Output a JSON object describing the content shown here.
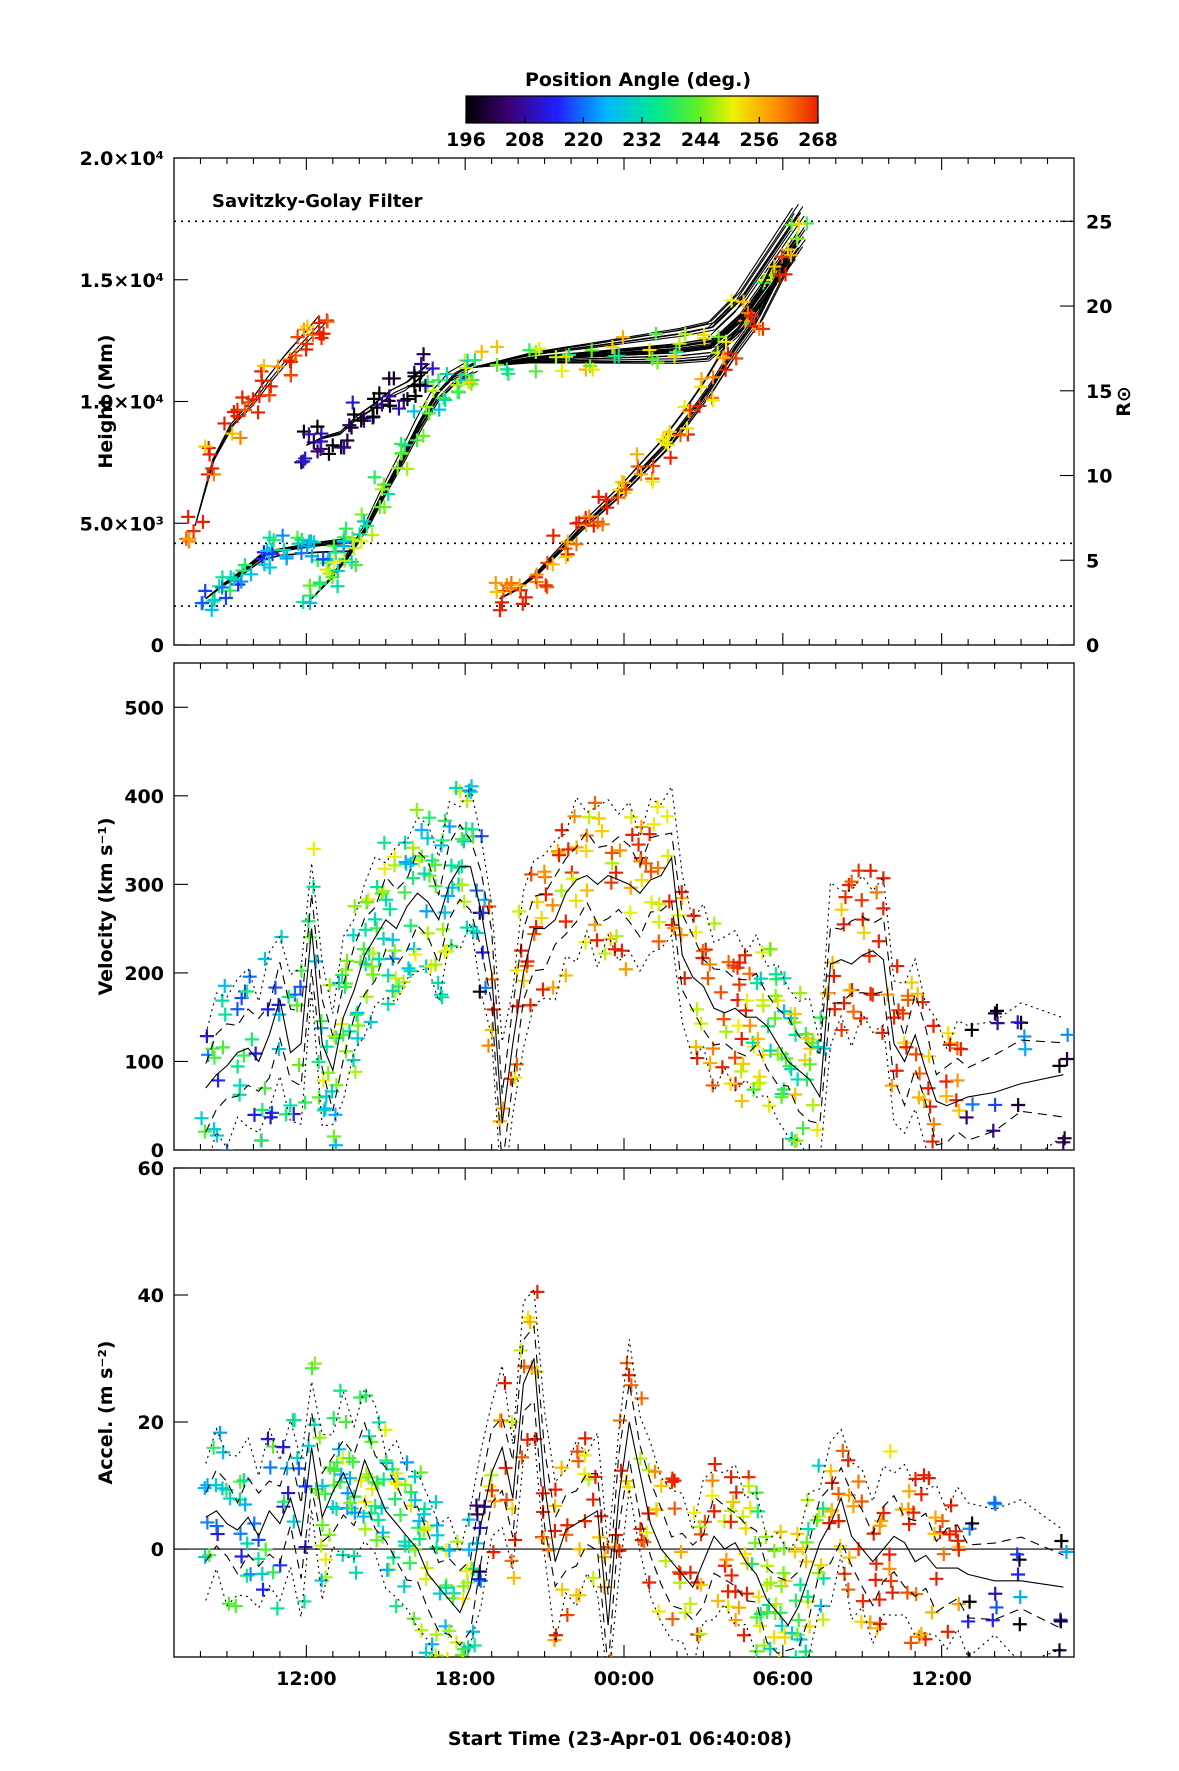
{
  "figure": {
    "colorbar": {
      "title": "Position Angle (deg.)",
      "ticks": [
        "196",
        "208",
        "220",
        "232",
        "244",
        "256",
        "268"
      ],
      "range": [
        196,
        268
      ]
    },
    "xlabel": "Start Time (23-Apr-01 06:40:08)",
    "xticks": [
      "12:00",
      "18:00",
      "00:00",
      "06:00",
      "12:00"
    ]
  },
  "colors": {
    "colormap": [
      "#000000",
      "#3a0070",
      "#2020ff",
      "#00b8ff",
      "#00e890",
      "#60f020",
      "#f0f000",
      "#ff9000",
      "#e82000"
    ]
  },
  "chart_data": [
    {
      "type": "scatter",
      "panel": "height",
      "ylabel": "Height (Mm)",
      "y2label": "R⊙",
      "annotation": "Savitzky-Golay Filter",
      "ylim": [
        0,
        20000
      ],
      "y_ticks": [
        "0",
        "5.0×10³",
        "1.0×10⁴",
        "1.5×10⁴",
        "2.0×10⁴"
      ],
      "y2_ticks": [
        "0",
        "5",
        "10",
        "15",
        "20",
        "25"
      ],
      "reference_lines_rsun": [
        2.3,
        6.0,
        25.0
      ],
      "groups": [
        {
          "x_hours": [
            8.2,
            8.9,
            9.6,
            10.3,
            10.9,
            11.6,
            12.3,
            12.9,
            13.6
          ],
          "y_mm": [
            1900,
            2500,
            3000,
            3600,
            3800,
            3900,
            4000,
            4050,
            4100
          ],
          "pa": 226
        },
        {
          "x_hours": [
            12.2,
            12.9,
            13.6,
            14.3,
            14.9,
            15.6,
            16.3,
            16.9,
            17.6,
            18.3
          ],
          "y_mm": [
            1900,
            2700,
            3700,
            4900,
            6200,
            7600,
            9100,
            10200,
            11000,
            11400
          ],
          "pa": 238
        },
        {
          "x_hours": [
            18.3,
            19.4,
            20.5,
            21.6,
            22.8,
            23.9,
            1.0,
            2.1,
            3.3,
            4.4,
            5.5,
            6.6
          ],
          "y_mm": [
            11400,
            11600,
            11800,
            11900,
            12000,
            12100,
            12200,
            12300,
            12500,
            13600,
            15300,
            17000
          ],
          "pa": 244
        },
        {
          "x_hours": [
            19.3,
            20.0,
            20.8,
            21.6,
            22.4,
            23.2,
            0.0,
            0.8,
            1.6,
            2.4,
            3.2,
            4.0,
            5.0,
            6.0
          ],
          "y_mm": [
            1900,
            2300,
            3000,
            3900,
            4800,
            5600,
            6400,
            7300,
            8200,
            9300,
            10500,
            11900,
            13400,
            15600
          ],
          "pa": 262
        },
        {
          "x_hours": [
            7.8,
            8.5,
            9.2,
            9.9,
            10.6,
            11.3,
            12.0,
            12.6
          ],
          "y_mm": [
            4900,
            7600,
            9000,
            9800,
            10800,
            11700,
            12500,
            13200
          ],
          "pa": 266
        },
        {
          "x_hours": [
            12.0,
            12.6,
            13.3,
            13.9,
            14.6,
            15.2,
            15.8,
            16.6
          ],
          "y_mm": [
            8200,
            8500,
            8700,
            9300,
            9800,
            10300,
            10600,
            11300
          ],
          "pa": 200
        }
      ]
    },
    {
      "type": "scatter",
      "panel": "velocity",
      "ylabel": "Velocity (km s⁻¹)",
      "ylim": [
        0,
        550
      ],
      "y_ticks": [
        "0",
        "100",
        "200",
        "300",
        "400",
        "500"
      ],
      "mean_curve": {
        "x_hours": [
          8.2,
          8.6,
          9.0,
          9.4,
          9.8,
          10.2,
          10.6,
          11.0,
          11.4,
          11.8,
          12.2,
          12.6,
          13.0,
          13.4,
          13.8,
          14.2,
          14.6,
          15.0,
          15.4,
          15.8,
          16.2,
          16.6,
          17.0,
          17.4,
          17.8,
          18.2,
          18.6,
          19.0,
          19.4,
          19.8,
          20.2,
          20.6,
          21.0,
          21.4,
          21.8,
          22.2,
          22.6,
          23.0,
          23.4,
          23.8,
          0.2,
          0.6,
          1.0,
          1.4,
          1.8,
          2.2,
          2.6,
          3.0,
          3.4,
          3.8,
          4.2,
          4.6,
          5.0,
          5.4,
          5.8,
          6.2,
          6.6,
          7.0,
          7.4,
          7.8,
          8.2,
          8.6,
          9.0,
          9.4,
          9.8,
          10.2,
          10.6,
          11.0,
          11.4,
          11.8,
          12.2,
          12.6,
          13.0,
          14.0,
          15.0,
          16.6
        ],
        "v_kms": [
          70,
          85,
          95,
          110,
          115,
          100,
          130,
          170,
          110,
          120,
          250,
          120,
          90,
          150,
          180,
          220,
          240,
          260,
          250,
          275,
          290,
          280,
          260,
          300,
          320,
          320,
          270,
          200,
          30,
          120,
          200,
          250,
          250,
          260,
          290,
          305,
          310,
          300,
          310,
          305,
          300,
          290,
          305,
          310,
          330,
          220,
          195,
          185,
          160,
          155,
          160,
          150,
          150,
          140,
          120,
          100,
          90,
          80,
          60,
          210,
          215,
          210,
          220,
          225,
          215,
          120,
          100,
          130,
          90,
          55,
          50,
          55,
          60,
          65,
          75,
          85
        ]
      }
    },
    {
      "type": "scatter",
      "panel": "acceleration",
      "ylabel": "Accel. (m s⁻²)",
      "ylim": [
        -17,
        60
      ],
      "y_ticks": [
        "0",
        "20",
        "40",
        "60"
      ],
      "zero_line": true,
      "mean_curve": {
        "x_hours": [
          8.2,
          8.6,
          9.0,
          9.4,
          9.8,
          10.2,
          10.6,
          11.0,
          11.4,
          11.8,
          12.2,
          12.6,
          13.0,
          13.4,
          13.8,
          14.2,
          14.6,
          15.0,
          15.4,
          15.8,
          16.2,
          16.6,
          17.0,
          17.4,
          17.8,
          18.2,
          18.6,
          19.0,
          19.4,
          19.8,
          20.2,
          20.6,
          21.0,
          21.4,
          21.8,
          22.2,
          22.6,
          23.0,
          23.4,
          23.8,
          0.2,
          0.6,
          1.0,
          1.4,
          1.8,
          2.2,
          2.6,
          3.0,
          3.4,
          3.8,
          4.2,
          4.6,
          5.0,
          5.4,
          5.8,
          6.2,
          6.6,
          7.0,
          7.4,
          7.8,
          8.2,
          8.6,
          9.0,
          9.4,
          9.8,
          10.2,
          10.6,
          11.0,
          11.4,
          11.8,
          12.2,
          12.6,
          13.0,
          14.0,
          15.0,
          16.6
        ],
        "a_ms2": [
          5,
          6,
          4,
          3,
          5,
          2,
          6,
          4,
          8,
          2,
          16,
          5,
          9,
          12,
          8,
          14,
          10,
          6,
          4,
          2,
          0,
          -4,
          -6,
          -8,
          -10,
          -6,
          4,
          12,
          16,
          8,
          26,
          30,
          10,
          -2,
          3,
          4,
          5,
          6,
          -12,
          8,
          20,
          12,
          4,
          0,
          -2,
          -4,
          -6,
          -2,
          2,
          0,
          1,
          -2,
          -4,
          -8,
          -10,
          -12,
          -9,
          -4,
          1,
          4,
          8,
          2,
          0,
          -2,
          0,
          2,
          1,
          -2,
          -1,
          -3,
          -3,
          -3,
          -4,
          -5,
          -5,
          -6
        ]
      }
    }
  ]
}
